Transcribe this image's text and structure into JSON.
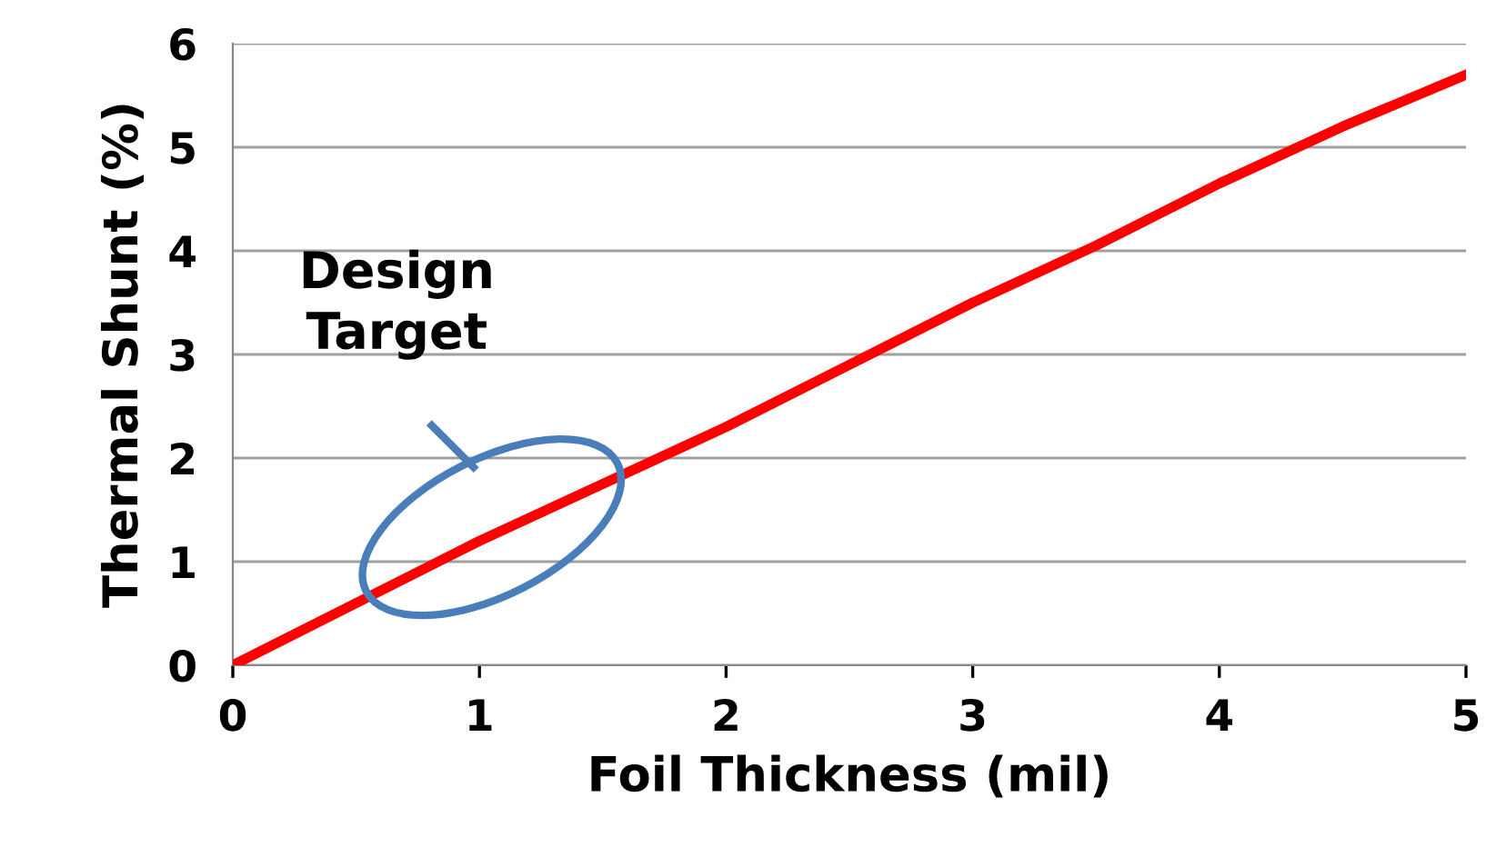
{
  "chart_data": {
    "type": "line",
    "xlabel": "Foil Thickness (mil)",
    "ylabel": "Thermal Shunt (%)",
    "x": [
      0,
      0.5,
      1,
      1.5,
      2,
      2.5,
      3,
      3.5,
      4,
      4.5,
      5
    ],
    "series": [
      {
        "color": "#ff0000",
        "values": [
          0,
          0.6,
          1.2,
          1.75,
          2.3,
          2.9,
          3.5,
          4.05,
          4.65,
          5.2,
          5.7
        ]
      }
    ],
    "annotations": [
      "Design\nTarget"
    ],
    "xlim": [
      0,
      5
    ],
    "ylim": [
      0,
      6
    ],
    "xticks": [
      0,
      1,
      2,
      3,
      4,
      5
    ],
    "yticks": [
      0,
      1,
      2,
      3,
      4,
      5,
      6
    ],
    "grid": "y",
    "legend": false,
    "marker": "none",
    "line_style": "solid"
  }
}
